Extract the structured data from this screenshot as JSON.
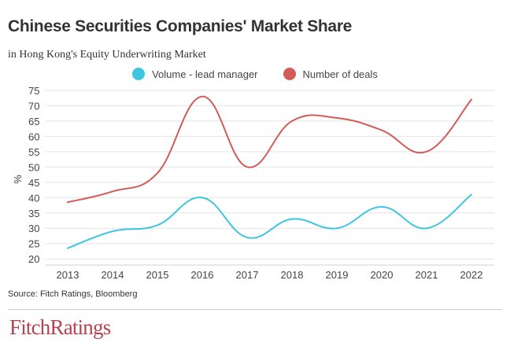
{
  "header": {
    "title": "Chinese Securities Companies' Market Share",
    "subtitle": "in Hong Kong's Equity Underwriting Market"
  },
  "chart_data": {
    "type": "line",
    "title": "Chinese Securities Companies' Market Share",
    "subtitle": "in Hong Kong's Equity Underwriting Market",
    "xlabel": "",
    "ylabel": "%",
    "categories": [
      "2013",
      "2014",
      "2015",
      "2016",
      "2017",
      "2018",
      "2019",
      "2020",
      "2021",
      "2022"
    ],
    "yticks": [
      20,
      25,
      30,
      35,
      40,
      45,
      50,
      55,
      60,
      65,
      70,
      75
    ],
    "ylim": [
      18,
      76
    ],
    "grid": true,
    "legend_position": "top-center",
    "series": [
      {
        "name": "Volume - lead manager",
        "color": "#3ec6e0",
        "values": [
          23.5,
          29,
          31,
          40,
          27,
          33,
          30,
          37,
          30,
          41
        ]
      },
      {
        "name": "Number of deals",
        "color": "#d35c57",
        "values": [
          38.5,
          42,
          48,
          73,
          50,
          65,
          66,
          62,
          55,
          72
        ]
      }
    ]
  },
  "footer": {
    "source": "Source: Fitch Ratings, Bloomberg",
    "logo_text": "FitchRatings"
  }
}
